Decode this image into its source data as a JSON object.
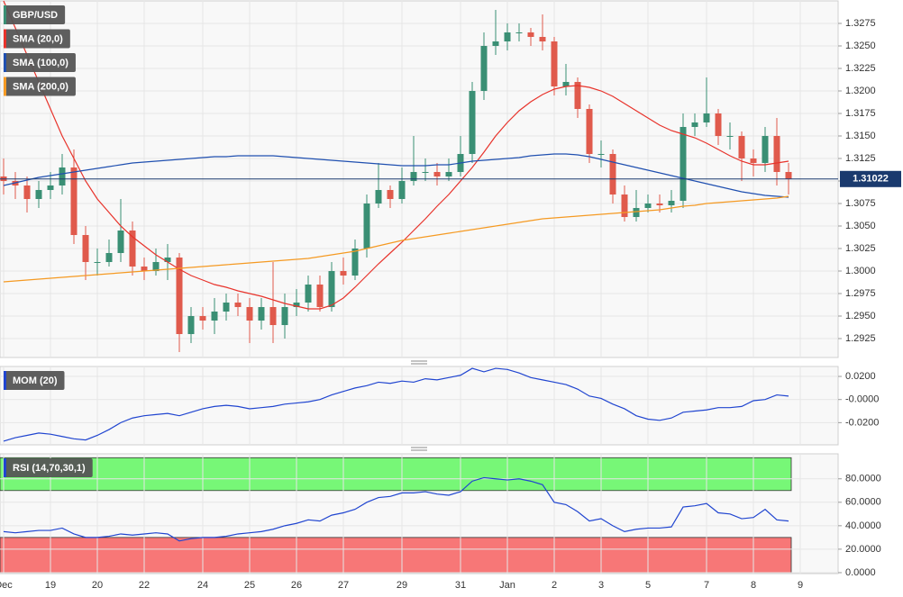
{
  "chart_data": [
    {
      "type": "candlestick",
      "x": [
        "Dec",
        null,
        null,
        null,
        "19",
        null,
        null,
        null,
        "20",
        null,
        null,
        null,
        "22",
        null,
        null,
        null,
        null,
        "24",
        null,
        null,
        null,
        "25",
        null,
        null,
        null,
        "26",
        null,
        null,
        null,
        "27",
        null,
        null,
        null,
        null,
        "29",
        null,
        null,
        null,
        null,
        "31",
        null,
        null,
        null,
        "Jan",
        null,
        null,
        null,
        "2",
        null,
        null,
        null,
        "3",
        null,
        null,
        null,
        "5",
        null,
        null,
        null,
        null,
        "7",
        null,
        null,
        null,
        "8",
        null,
        null,
        null,
        "9"
      ],
      "ohlc": {
        "name": "GBP/USD",
        "up_color": "#3a8f74",
        "down_color": "#e05a4c",
        "open": [
          1.3105,
          1.31,
          1.3095,
          1.308,
          1.309,
          1.3095,
          1.3115,
          1.304,
          1.301,
          1.301,
          1.302,
          1.3045,
          1.3005,
          1.3,
          1.301,
          1.3015,
          1.293,
          1.295,
          1.2945,
          1.2955,
          1.2965,
          1.296,
          1.2945,
          1.296,
          1.294,
          1.296,
          1.2965,
          1.2985,
          1.296,
          1.3,
          1.2995,
          1.3025,
          1.3075,
          1.309,
          1.308,
          1.31,
          1.311,
          1.311,
          1.3105,
          1.311,
          1.313,
          1.32,
          1.325,
          1.3255,
          1.3265,
          1.3265,
          1.326,
          1.3255,
          1.3205,
          1.321,
          1.318,
          1.313,
          1.313,
          1.3085,
          1.306,
          1.307,
          1.3075,
          1.3073,
          1.3078,
          1.316,
          1.3165,
          1.3175,
          1.315,
          1.315,
          1.3125,
          1.312,
          1.315,
          1.311,
          null
        ],
        "high": [
          1.3125,
          1.311,
          1.3105,
          1.31,
          1.311,
          1.313,
          1.3135,
          1.305,
          1.3025,
          1.3035,
          1.308,
          1.3055,
          1.3015,
          1.3025,
          1.303,
          1.302,
          1.296,
          1.296,
          1.297,
          1.2975,
          1.2975,
          1.297,
          1.297,
          1.301,
          1.2975,
          1.298,
          1.2995,
          1.2995,
          1.301,
          1.3015,
          1.3035,
          1.3085,
          1.312,
          1.3095,
          1.3115,
          1.315,
          1.3125,
          1.312,
          1.3125,
          1.315,
          1.321,
          1.3265,
          1.329,
          1.3275,
          1.3275,
          1.327,
          1.3285,
          1.326,
          1.323,
          1.3215,
          1.3185,
          1.3145,
          1.3135,
          1.3095,
          1.309,
          1.3085,
          1.3085,
          1.309,
          1.3175,
          1.3175,
          1.3215,
          1.318,
          1.3165,
          1.3155,
          1.3135,
          1.316,
          1.317,
          1.312,
          null
        ],
        "low": [
          1.3085,
          1.308,
          1.3065,
          1.307,
          1.308,
          1.3085,
          1.303,
          1.299,
          1.2995,
          1.3005,
          1.301,
          1.2995,
          1.299,
          1.2995,
          1.299,
          1.291,
          1.292,
          1.2935,
          1.293,
          1.2945,
          1.295,
          1.292,
          1.2935,
          1.292,
          1.2925,
          1.295,
          1.2955,
          1.2955,
          1.2955,
          1.2985,
          1.299,
          1.3015,
          1.307,
          1.307,
          1.3075,
          1.3095,
          1.31,
          1.3095,
          1.31,
          1.3105,
          1.312,
          1.319,
          1.324,
          1.3245,
          1.3255,
          1.325,
          1.3245,
          1.3195,
          1.3195,
          1.317,
          1.312,
          1.3115,
          1.3075,
          1.3055,
          1.3055,
          1.3065,
          1.3065,
          1.3065,
          1.307,
          1.315,
          1.316,
          1.314,
          1.3135,
          1.31,
          1.3105,
          1.311,
          1.3095,
          1.3085,
          null
        ],
        "close": [
          1.31,
          1.3095,
          1.308,
          1.309,
          1.3095,
          1.3115,
          1.304,
          1.301,
          1.301,
          1.302,
          1.3045,
          1.3005,
          1.3,
          1.301,
          1.3015,
          1.293,
          1.295,
          1.2945,
          1.2955,
          1.2965,
          1.296,
          1.2945,
          1.296,
          1.294,
          1.296,
          1.2965,
          1.2985,
          1.296,
          1.3,
          1.2995,
          1.3025,
          1.3075,
          1.309,
          1.308,
          1.31,
          1.311,
          1.311,
          1.3105,
          1.311,
          1.313,
          1.32,
          1.325,
          1.3255,
          1.3265,
          1.3265,
          1.326,
          1.3255,
          1.3205,
          1.321,
          1.318,
          1.313,
          1.313,
          1.3085,
          1.306,
          1.307,
          1.3075,
          1.3073,
          1.3078,
          1.316,
          1.3165,
          1.3175,
          1.315,
          1.315,
          1.3125,
          1.312,
          1.315,
          1.311,
          1.3102,
          null
        ]
      },
      "series": [
        {
          "name": "SMA (20,0)",
          "color": "#e8332b",
          "values": [
            1.33,
            1.327,
            1.324,
            1.321,
            1.318,
            1.315,
            1.3125,
            1.31,
            1.308,
            1.3065,
            1.305,
            1.3038,
            1.3028,
            1.3018,
            1.301,
            1.3002,
            1.2995,
            1.299,
            1.2985,
            1.2982,
            1.2978,
            1.2975,
            1.2972,
            1.2968,
            1.2964,
            1.2961,
            1.2958,
            1.2958,
            1.2962,
            1.297,
            1.2982,
            1.2995,
            1.3008,
            1.302,
            1.3032,
            1.3045,
            1.3058,
            1.3072,
            1.3085,
            1.31,
            1.3115,
            1.3132,
            1.315,
            1.3165,
            1.3178,
            1.3188,
            1.3196,
            1.3202,
            1.3205,
            1.3206,
            1.3204,
            1.32,
            1.3194,
            1.3186,
            1.3178,
            1.317,
            1.3162,
            1.3156,
            1.3152,
            1.3148,
            1.3142,
            1.3135,
            1.3128,
            1.3122,
            1.3118,
            1.3118,
            1.312,
            1.3122,
            null
          ]
        },
        {
          "name": "SMA (100,0)",
          "color": "#2050b0",
          "values": [
            1.3095,
            1.3098,
            1.3101,
            1.3104,
            1.3106,
            1.3108,
            1.311,
            1.3112,
            1.3114,
            1.3116,
            1.3118,
            1.312,
            1.3121,
            1.3122,
            1.3123,
            1.3124,
            1.3125,
            1.3126,
            1.3127,
            1.3127,
            1.3128,
            1.3128,
            1.3128,
            1.3128,
            1.3127,
            1.3126,
            1.3125,
            1.3124,
            1.3123,
            1.3122,
            1.3121,
            1.312,
            1.3119,
            1.3118,
            1.3117,
            1.3117,
            1.3117,
            1.3118,
            1.3118,
            1.312,
            1.3122,
            1.3123,
            1.3124,
            1.3125,
            1.3126,
            1.3128,
            1.3129,
            1.313,
            1.313,
            1.3129,
            1.3127,
            1.3124,
            1.3121,
            1.3118,
            1.3115,
            1.3112,
            1.3109,
            1.3106,
            1.3103,
            1.31,
            1.3097,
            1.3094,
            1.3091,
            1.3088,
            1.3086,
            1.3084,
            1.3083,
            1.3082,
            null
          ]
        },
        {
          "name": "SMA (200,0)",
          "color": "#f59a23",
          "values": [
            1.2988,
            1.2989,
            1.299,
            1.2991,
            1.2992,
            1.2993,
            1.2994,
            1.2995,
            1.2996,
            1.2997,
            1.2998,
            1.2999,
            1.3,
            1.3001,
            1.3002,
            1.3003,
            1.3004,
            1.3005,
            1.3006,
            1.3007,
            1.3008,
            1.3009,
            1.301,
            1.3011,
            1.3012,
            1.3013,
            1.3014,
            1.3016,
            1.3018,
            1.302,
            1.3022,
            1.3025,
            1.3028,
            1.3031,
            1.3034,
            1.3036,
            1.3038,
            1.304,
            1.3042,
            1.3044,
            1.3046,
            1.3048,
            1.305,
            1.3052,
            1.3054,
            1.3056,
            1.3058,
            1.3059,
            1.306,
            1.3061,
            1.3062,
            1.3063,
            1.3064,
            1.3065,
            1.3066,
            1.3067,
            1.3068,
            1.307,
            1.3072,
            1.3073,
            1.3075,
            1.3076,
            1.3077,
            1.3078,
            1.3079,
            1.308,
            1.3081,
            1.3083,
            null
          ]
        }
      ],
      "ylim": [
        1.2904,
        1.33
      ],
      "yticks": [
        1.2925,
        {
          "value": 1.295,
          "label": "1.2950"
        },
        1.2975,
        {
          "value": 1.3,
          "label": "1.3000"
        },
        1.3025,
        {
          "value": 1.305,
          "label": "1.3050"
        },
        1.3075,
        {
          "value": 1.31,
          "label": "1.3100"
        },
        1.3125,
        {
          "value": 1.315,
          "label": "1.3150"
        },
        1.3175,
        {
          "value": 1.32,
          "label": "1.3200"
        },
        1.3225,
        {
          "value": 1.325,
          "label": "1.3250"
        },
        1.3275
      ],
      "last_price": 1.31022,
      "grid": true
    },
    {
      "type": "line",
      "series": [
        {
          "name": "MOM (20)",
          "color": "#2045d0",
          "values": [
            -0.036,
            -0.033,
            -0.031,
            -0.029,
            -0.03,
            -0.032,
            -0.034,
            -0.035,
            -0.031,
            -0.026,
            -0.02,
            -0.016,
            -0.014,
            -0.013,
            -0.012,
            -0.014,
            -0.011,
            -0.008,
            -0.006,
            -0.005,
            -0.006,
            -0.008,
            -0.007,
            -0.006,
            -0.004,
            -0.003,
            -0.002,
            0,
            0.004,
            0.007,
            0.01,
            0.012,
            0.015,
            0.014,
            0.016,
            0.015,
            0.018,
            0.017,
            0.019,
            0.021,
            0.027,
            0.024,
            0.027,
            0.026,
            0.023,
            0.019,
            0.017,
            0.015,
            0.013,
            0.009,
            0.003,
            0.001,
            -0.004,
            -0.008,
            -0.014,
            -0.017,
            -0.018,
            -0.016,
            -0.011,
            -0.01,
            -0.009,
            -0.007,
            -0.007,
            -0.006,
            -0.001,
            0,
            0.004,
            0.003,
            null
          ]
        }
      ],
      "ylim": [
        -0.0392,
        0.0286
      ],
      "yticks": [
        {
          "value": -0.02,
          "label": "-0.0200"
        },
        {
          "value": 0,
          "label": "-0.0000"
        },
        {
          "value": 0.02,
          "label": "0.0200"
        }
      ],
      "grid": true
    },
    {
      "type": "line",
      "series": [
        {
          "name": "RSI (14,70,30,1)",
          "color": "#2045d0",
          "values": [
            35,
            34,
            35,
            36,
            36,
            38,
            33,
            30,
            30,
            31,
            33,
            32,
            33,
            34,
            33,
            27,
            29,
            30,
            30,
            31,
            33,
            34,
            35,
            37,
            40,
            42,
            45,
            44,
            49,
            51,
            54,
            60,
            64,
            65,
            68,
            68,
            69,
            67,
            66,
            69,
            78,
            81,
            80,
            79,
            80,
            78,
            75,
            60,
            58,
            52,
            44,
            46,
            40,
            35,
            37,
            38,
            38,
            39,
            56,
            57,
            59,
            51,
            50,
            46,
            47,
            54,
            45,
            44,
            null
          ]
        }
      ],
      "bands": [
        {
          "from": 70,
          "to": 98,
          "color": "#77f777"
        },
        {
          "from": 0,
          "to": 30,
          "color": "#f77777"
        }
      ],
      "ylim": [
        -0.8,
        101.3
      ],
      "yticks": [
        {
          "value": 0,
          "label": "0.0000"
        },
        {
          "value": 20,
          "label": "20.0000"
        },
        {
          "value": 40,
          "label": "40.0000"
        },
        {
          "value": 60,
          "label": "60.0000"
        },
        {
          "value": 80,
          "label": "80.0000"
        }
      ],
      "grid": true
    }
  ]
}
